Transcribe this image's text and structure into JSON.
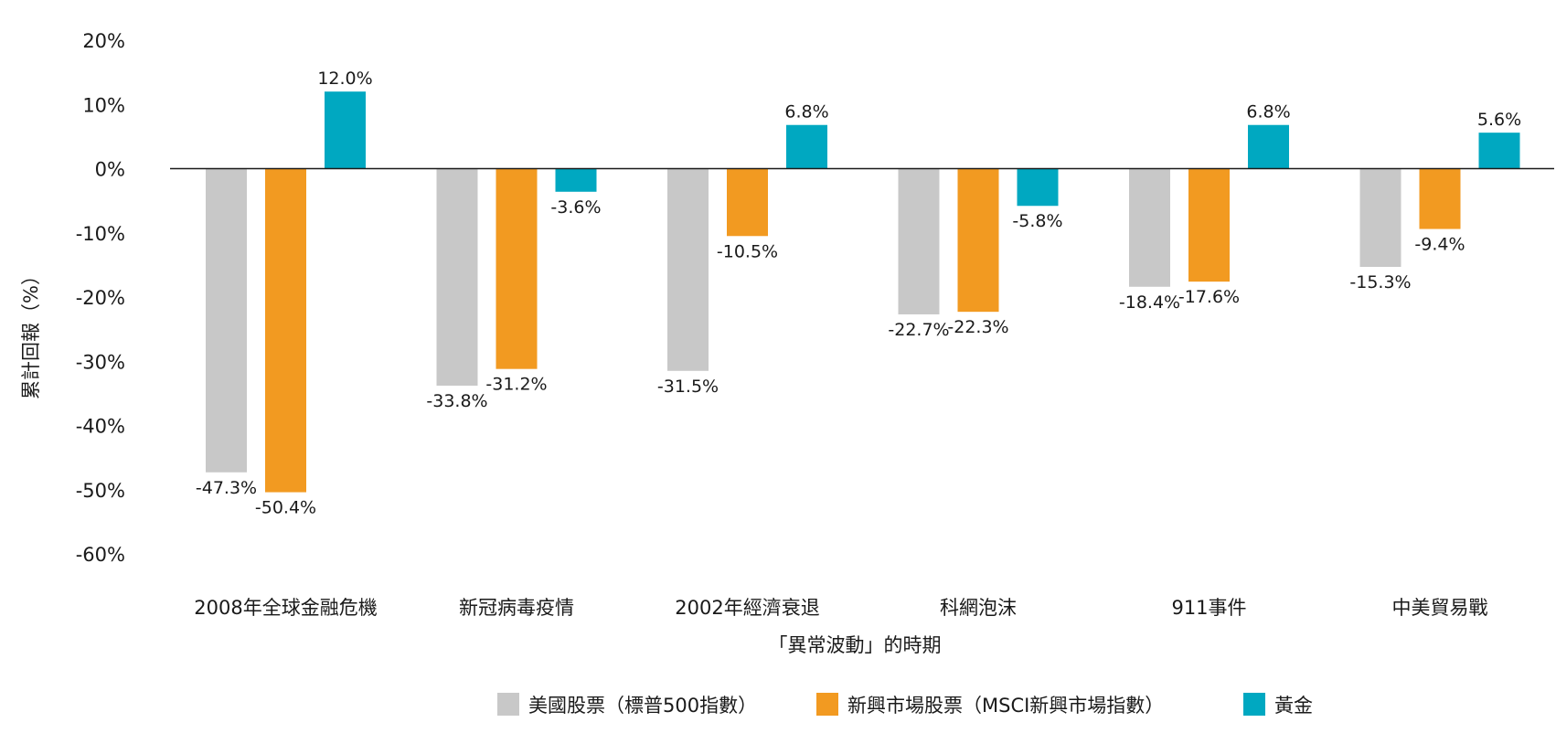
{
  "chart_data": {
    "type": "bar",
    "title": "",
    "xlabel": "「異常波動」的時期",
    "ylabel": "累計回報（%）",
    "ylim": [
      -60,
      20
    ],
    "yticks": [
      "20%",
      "10%",
      "0%",
      "-10%",
      "-20%",
      "-30%",
      "-40%",
      "-50%",
      "-60%"
    ],
    "ytick_values": [
      20,
      10,
      0,
      -10,
      -20,
      -30,
      -40,
      -50,
      -60
    ],
    "grid": false,
    "legend_position": "bottom",
    "categories": [
      "2008年全球金融危機",
      "新冠病毒疫情",
      "2002年經濟衰退",
      "科網泡沫",
      "911事件",
      "中美貿易戰"
    ],
    "series": [
      {
        "name": "美國股票（標普500指數）",
        "color": "#c8c8c8",
        "values": [
          -47.3,
          -33.8,
          -31.5,
          -22.7,
          -18.4,
          -15.3
        ],
        "labels": [
          "-47.3%",
          "-33.8%",
          "-31.5%",
          "-22.7%",
          "-18.4%",
          "-15.3%"
        ]
      },
      {
        "name": "新興市場股票（MSCI新興市場指數）",
        "color": "#f29a21",
        "values": [
          -50.4,
          -31.2,
          -10.5,
          -22.3,
          -17.6,
          -9.4
        ],
        "labels": [
          "-50.4%",
          "-31.2%",
          "-10.5%",
          "-22.3%",
          "-17.6%",
          "-9.4%"
        ]
      },
      {
        "name": "黃金",
        "color": "#00a8c1",
        "values": [
          12.0,
          -3.6,
          6.8,
          -5.8,
          6.8,
          5.6
        ],
        "labels": [
          "12.0%",
          "-3.6%",
          "6.8%",
          "-5.8%",
          "6.8%",
          "5.6%"
        ]
      }
    ]
  }
}
